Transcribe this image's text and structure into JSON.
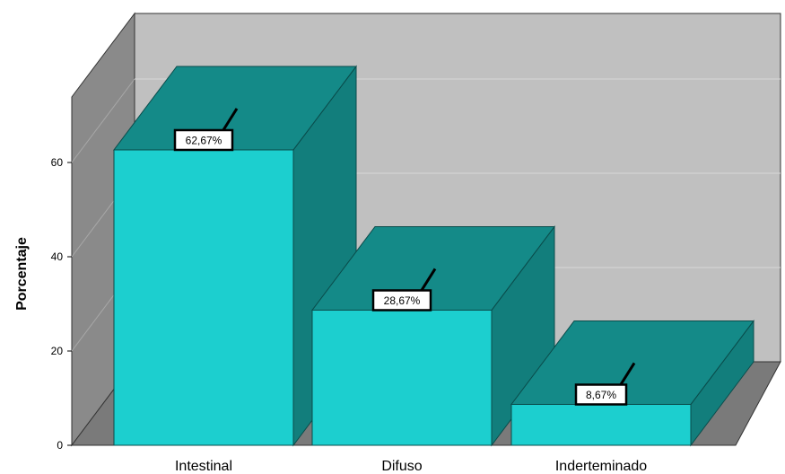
{
  "chart_data": {
    "type": "bar",
    "title": "",
    "xlabel": "",
    "ylabel": "Porcentaje",
    "categories": [
      "Intestinal",
      "Difuso",
      "Inderteminado"
    ],
    "values": [
      62.67,
      28.67,
      8.67
    ],
    "data_labels": [
      "62,67%",
      "28,67%",
      "8,67%"
    ],
    "ylim": [
      0,
      70
    ],
    "yticks": [
      0,
      20,
      40,
      60
    ],
    "ytick_labels": [
      "0",
      "20",
      "40",
      "60"
    ],
    "grid": true,
    "style": "3d",
    "colors": {
      "bar_front": "#1ccfcf",
      "bar_top": "#148a88",
      "bar_side": "#127e7c",
      "back_wall": "#c0c0c0",
      "side_wall": "#8a8a8a",
      "floor": "#7a7a7a",
      "gridline": "#d8d8d8"
    }
  }
}
